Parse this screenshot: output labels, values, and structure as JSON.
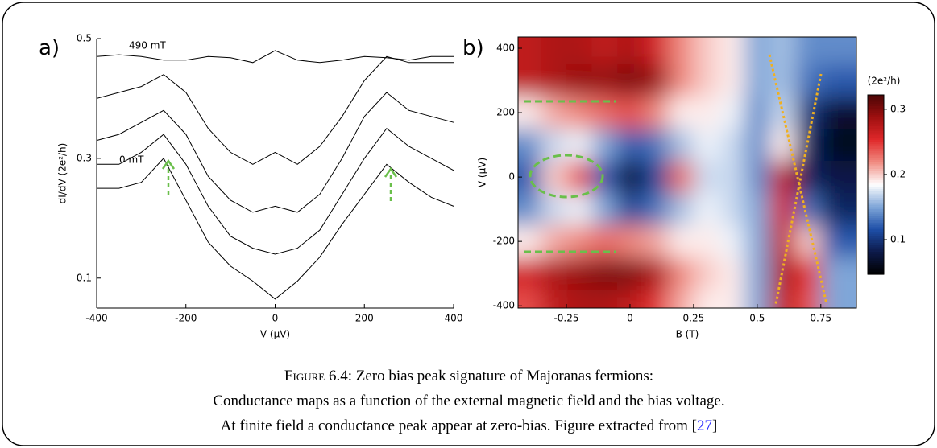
{
  "panel_labels": [
    "a)",
    "b)"
  ],
  "chart_data": [
    {
      "type": "line",
      "xlabel": "V (µV)",
      "ylabel": "dI/dV (2e²/h)",
      "x": [
        -400,
        -350,
        -300,
        -250,
        -200,
        -150,
        -100,
        -50,
        0,
        50,
        100,
        150,
        200,
        250,
        300,
        350,
        400
      ],
      "xlim": [
        -400,
        400
      ],
      "xticks": [
        -400,
        -200,
        0,
        200,
        400
      ],
      "ylim": [
        0.05,
        0.5
      ],
      "yticks": [
        0.1,
        0.3,
        0.5
      ],
      "series": [
        {
          "name": "0 mT",
          "color": "#000000",
          "values": [
            0.25,
            0.25,
            0.26,
            0.3,
            0.23,
            0.16,
            0.12,
            0.095,
            0.065,
            0.095,
            0.135,
            0.19,
            0.24,
            0.29,
            0.26,
            0.235,
            0.22
          ]
        },
        {
          "color": "#000000",
          "values": [
            0.29,
            0.29,
            0.31,
            0.34,
            0.29,
            0.22,
            0.17,
            0.15,
            0.14,
            0.15,
            0.18,
            0.24,
            0.3,
            0.35,
            0.32,
            0.3,
            0.28
          ]
        },
        {
          "color": "#000000",
          "values": [
            0.33,
            0.34,
            0.36,
            0.38,
            0.34,
            0.27,
            0.23,
            0.21,
            0.22,
            0.21,
            0.24,
            0.3,
            0.37,
            0.41,
            0.38,
            0.37,
            0.36
          ]
        },
        {
          "color": "#000000",
          "values": [
            0.4,
            0.41,
            0.42,
            0.44,
            0.41,
            0.35,
            0.31,
            0.29,
            0.31,
            0.29,
            0.32,
            0.37,
            0.43,
            0.47,
            0.46,
            0.46,
            0.46
          ]
        },
        {
          "name": "490 mT",
          "color": "#000000",
          "values": [
            0.47,
            0.473,
            0.47,
            0.464,
            0.464,
            0.47,
            0.468,
            0.46,
            0.48,
            0.464,
            0.46,
            0.464,
            0.47,
            0.468,
            0.464,
            0.47,
            0.47
          ]
        }
      ]
    },
    {
      "type": "heatmap",
      "xlabel": "B (T)",
      "ylabel": "V (µV)",
      "colorbar_label": "(2e²/h)",
      "x": [
        -0.4,
        -0.3,
        -0.2,
        -0.1,
        0,
        0.1,
        0.2,
        0.3,
        0.4,
        0.5,
        0.6,
        0.7,
        0.8
      ],
      "y": [
        400,
        300,
        200,
        100,
        0,
        -100,
        -200,
        -300,
        -400
      ],
      "z": [
        [
          0.27,
          0.28,
          0.28,
          0.27,
          0.28,
          0.26,
          0.22,
          0.2,
          0.19,
          0.15,
          0.16,
          0.14,
          0.14
        ],
        [
          0.27,
          0.28,
          0.29,
          0.29,
          0.3,
          0.29,
          0.22,
          0.2,
          0.19,
          0.15,
          0.16,
          0.13,
          0.12
        ],
        [
          0.19,
          0.21,
          0.22,
          0.23,
          0.24,
          0.22,
          0.19,
          0.19,
          0.18,
          0.14,
          0.17,
          0.1,
          0.07
        ],
        [
          0.14,
          0.17,
          0.18,
          0.15,
          0.12,
          0.13,
          0.16,
          0.18,
          0.17,
          0.14,
          0.19,
          0.09,
          0.06
        ],
        [
          0.12,
          0.2,
          0.24,
          0.12,
          0.07,
          0.11,
          0.23,
          0.17,
          0.17,
          0.14,
          0.27,
          0.09,
          0.08
        ],
        [
          0.14,
          0.17,
          0.18,
          0.15,
          0.11,
          0.13,
          0.16,
          0.18,
          0.17,
          0.15,
          0.26,
          0.13,
          0.09
        ],
        [
          0.19,
          0.21,
          0.22,
          0.23,
          0.22,
          0.21,
          0.19,
          0.19,
          0.18,
          0.15,
          0.27,
          0.2,
          0.12
        ],
        [
          0.26,
          0.28,
          0.29,
          0.3,
          0.3,
          0.28,
          0.22,
          0.2,
          0.19,
          0.15,
          0.28,
          0.25,
          0.15
        ],
        [
          0.24,
          0.27,
          0.28,
          0.28,
          0.27,
          0.25,
          0.21,
          0.19,
          0.19,
          0.15,
          0.27,
          0.24,
          0.15
        ]
      ],
      "xlim": [
        -0.44,
        0.89
      ],
      "xticks": [
        -0.25,
        0,
        0.25,
        0.5,
        0.75
      ],
      "ylim": [
        -407,
        435
      ],
      "yticks": [
        -400,
        -200,
        0,
        200,
        400
      ],
      "clim": [
        0.047,
        0.322
      ],
      "cticks": [
        0.1,
        0.2,
        0.3
      ],
      "colormap": [
        "#000000",
        "#0d1a4a",
        "#1e4fa8",
        "#7fa6d8",
        "#ffffff",
        "#f08a80",
        "#e0282a",
        "#9e1010",
        "#4a0505"
      ]
    }
  ],
  "caption": {
    "label": "Figure 6.4:",
    "line1": "Zero bias peak signature of Majoranas fermions:",
    "line2": "Conductance maps as a function of the external magnetic field and the bias voltage.",
    "line3": "At finite field a conductance peak appear at zero-bias. Figure extracted from [",
    "citation": "27",
    "close": "]"
  }
}
